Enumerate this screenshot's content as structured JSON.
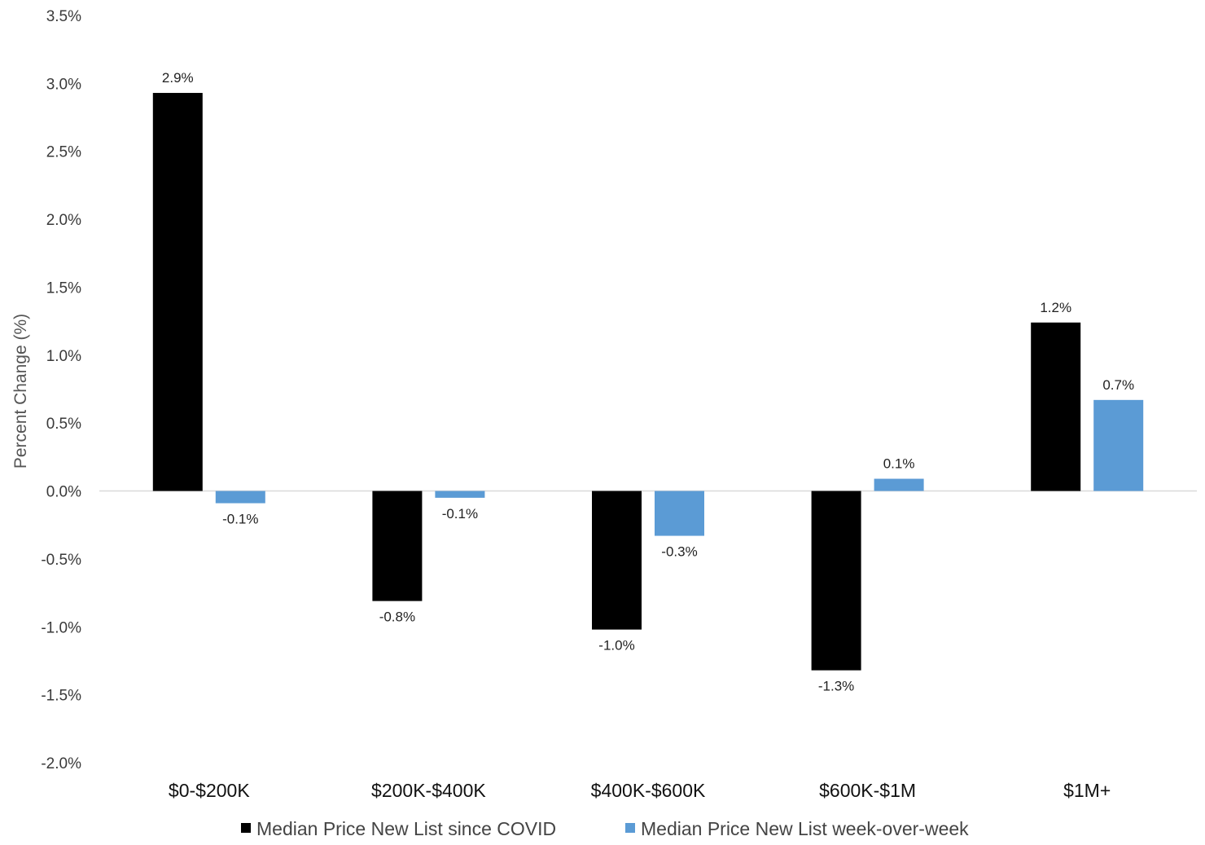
{
  "chart_data": {
    "type": "bar",
    "title": "",
    "xlabel": "",
    "ylabel": "Percent Change (%)",
    "ylim": [
      -2.0,
      3.5
    ],
    "ytick_step": 0.5,
    "grid": false,
    "legend_position": "bottom",
    "categories": [
      "$0-$200K",
      "$200K-$400K",
      "$400K-$600K",
      "$600K-$1M",
      "$1M+"
    ],
    "series": [
      {
        "name": "Median Price New List since COVID",
        "color": "#000000",
        "values": [
          2.93,
          -0.81,
          -1.02,
          -1.32,
          1.24
        ],
        "labels": [
          "2.9%",
          "-0.8%",
          "-1.0%",
          "-1.3%",
          "1.2%"
        ]
      },
      {
        "name": "Median Price New List week-over-week",
        "color": "#5b9bd5",
        "values": [
          -0.09,
          -0.05,
          -0.33,
          0.09,
          0.67
        ],
        "labels": [
          "-0.1%",
          "-0.1%",
          "-0.3%",
          "0.1%",
          "0.7%"
        ]
      }
    ],
    "yticks": [
      "3.5%",
      "3.0%",
      "2.5%",
      "2.0%",
      "1.5%",
      "1.0%",
      "0.5%",
      "0.0%",
      "-0.5%",
      "-1.0%",
      "-1.5%",
      "-2.0%"
    ]
  }
}
